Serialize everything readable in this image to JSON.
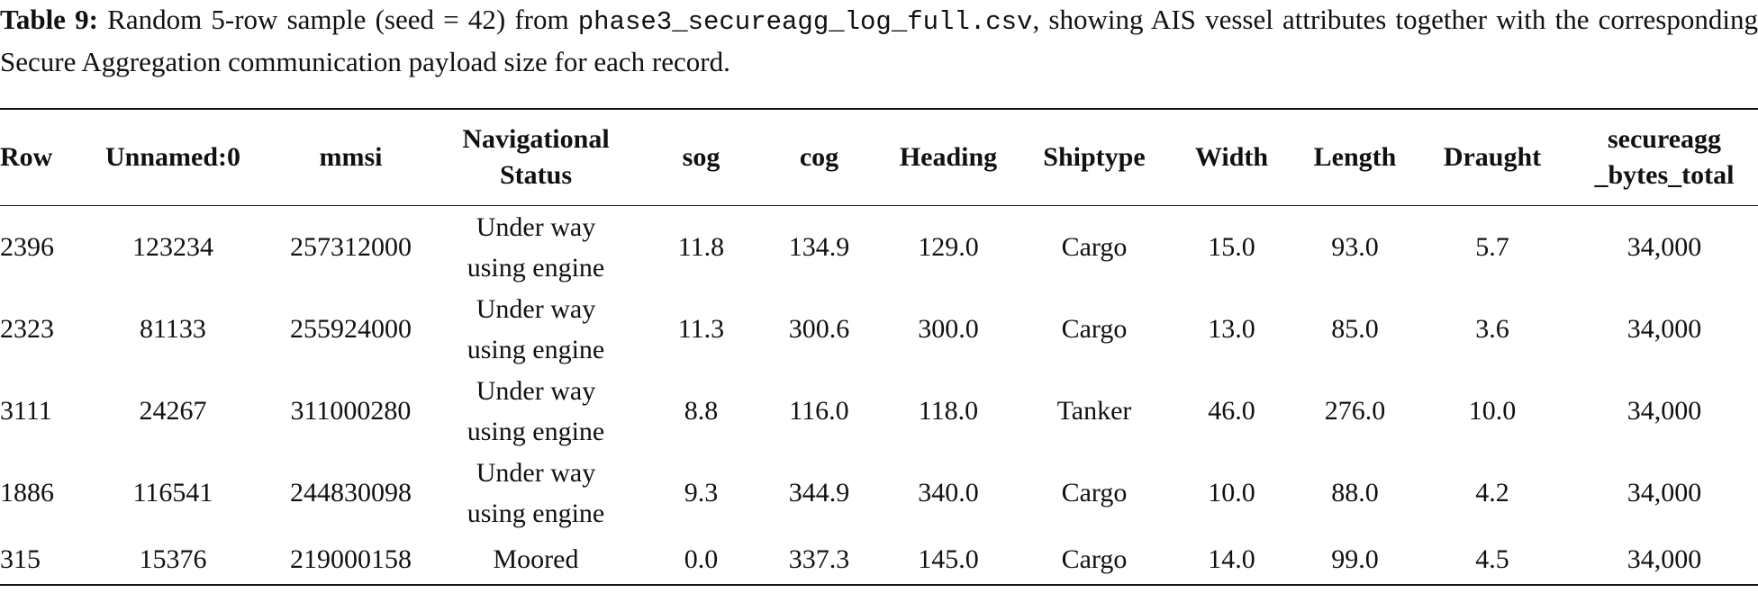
{
  "caption": {
    "label": "Table 9:",
    "text_before": "Random 5-row sample (seed = 42) from ",
    "filename": "phase3_secureagg_log_full.csv",
    "text_after": ", showing AIS vessel attributes together with the corresponding Secure Aggregation communication payload size for each record."
  },
  "table": {
    "headers": [
      "Row",
      "Unnamed:0",
      "mmsi",
      "Navigational Status",
      "sog",
      "cog",
      "Heading",
      "Shiptype",
      "Width",
      "Length",
      "Draught",
      [
        "secureagg",
        "_bytes_total"
      ]
    ],
    "rows": [
      [
        "2396",
        "123234",
        "257312000",
        "Under way using engine",
        "11.8",
        "134.9",
        "129.0",
        "Cargo",
        "15.0",
        "93.0",
        "5.7",
        "34,000"
      ],
      [
        "2323",
        "81133",
        "255924000",
        "Under way using engine",
        "11.3",
        "300.6",
        "300.0",
        "Cargo",
        "13.0",
        "85.0",
        "3.6",
        "34,000"
      ],
      [
        "3111",
        "24267",
        "311000280",
        "Under way using engine",
        "8.8",
        "116.0",
        "118.0",
        "Tanker",
        "46.0",
        "276.0",
        "10.0",
        "34,000"
      ],
      [
        "1886",
        "116541",
        "244830098",
        "Under way using engine",
        "9.3",
        "344.9",
        "340.0",
        "Cargo",
        "10.0",
        "88.0",
        "4.2",
        "34,000"
      ],
      [
        "315",
        "15376",
        "219000158",
        "Moored",
        "0.0",
        "337.3",
        "145.0",
        "Cargo",
        "14.0",
        "99.0",
        "4.5",
        "34,000"
      ]
    ]
  }
}
